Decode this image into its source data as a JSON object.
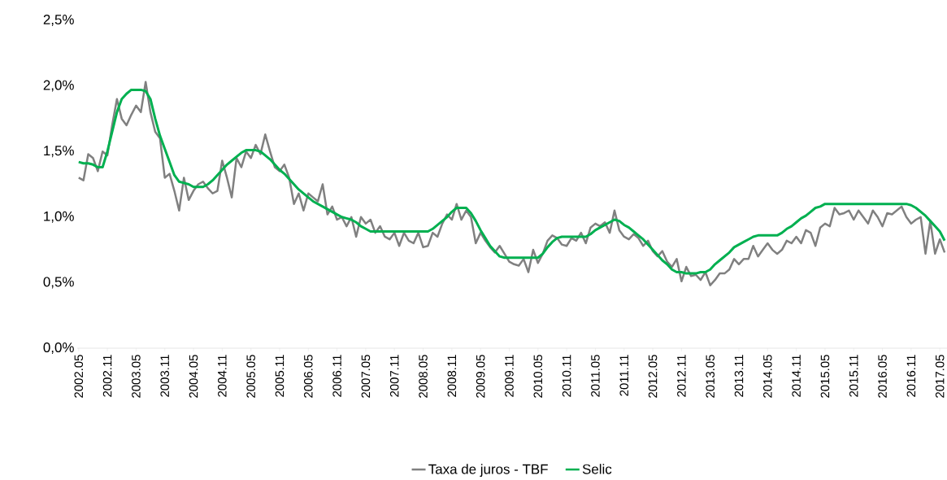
{
  "chart_data": {
    "type": "line",
    "legend": "bottom",
    "categories": [
      "2002.05",
      null,
      null,
      null,
      null,
      null,
      "2002.11",
      null,
      null,
      null,
      null,
      null,
      "2003.05",
      null,
      null,
      null,
      null,
      null,
      "2003.11",
      null,
      null,
      null,
      null,
      null,
      "2004.05",
      null,
      null,
      null,
      null,
      null,
      "2004.11",
      null,
      null,
      null,
      null,
      null,
      "2005.05",
      null,
      null,
      null,
      null,
      null,
      "2005.11",
      null,
      null,
      null,
      null,
      null,
      "2006.05",
      null,
      null,
      null,
      null,
      null,
      "2006.11",
      null,
      null,
      null,
      null,
      null,
      "2007.05",
      null,
      null,
      null,
      null,
      null,
      "2007.11",
      null,
      null,
      null,
      null,
      null,
      "2008.05",
      null,
      null,
      null,
      null,
      null,
      "2008.11",
      null,
      null,
      null,
      null,
      null,
      "2009.05",
      null,
      null,
      null,
      null,
      null,
      "2009.11",
      null,
      null,
      null,
      null,
      null,
      "2010.05",
      null,
      null,
      null,
      null,
      null,
      "2010.11",
      null,
      null,
      null,
      null,
      null,
      "2011.05",
      null,
      null,
      null,
      null,
      null,
      "2011.11",
      null,
      null,
      null,
      null,
      null,
      "2012.05",
      null,
      null,
      null,
      null,
      null,
      "2012.11",
      null,
      null,
      null,
      null,
      null,
      "2013.05",
      null,
      null,
      null,
      null,
      null,
      "2013.11",
      null,
      null,
      null,
      null,
      null,
      "2014.05",
      null,
      null,
      null,
      null,
      null,
      "2014.11",
      null,
      null,
      null,
      null,
      null,
      "2015.05",
      null,
      null,
      null,
      null,
      null,
      "2015.11",
      null,
      null,
      null,
      null,
      null,
      "2016.05",
      null,
      null,
      null,
      null,
      null,
      "2016.11",
      null,
      null,
      null,
      null,
      null,
      "2017.05",
      null
    ],
    "ylim": [
      0,
      2.5
    ],
    "yticks": [
      {
        "value": 0,
        "label": "0,0%"
      },
      {
        "value": 0.5,
        "label": "0,5%"
      },
      {
        "value": 1,
        "label": "1,0%"
      },
      {
        "value": 1.5,
        "label": "1,5%"
      },
      {
        "value": 2,
        "label": "2,0%"
      },
      {
        "value": 2.5,
        "label": "2,5%"
      }
    ],
    "series": [
      {
        "name": "Taxa de juros - TBF",
        "color": "#808080",
        "values": [
          1.3,
          1.28,
          1.48,
          1.45,
          1.35,
          1.5,
          1.47,
          1.7,
          1.9,
          1.75,
          1.7,
          1.78,
          1.85,
          1.8,
          2.03,
          1.8,
          1.65,
          1.6,
          1.3,
          1.33,
          1.2,
          1.05,
          1.3,
          1.13,
          1.2,
          1.25,
          1.27,
          1.22,
          1.18,
          1.2,
          1.43,
          1.3,
          1.15,
          1.45,
          1.38,
          1.5,
          1.45,
          1.55,
          1.48,
          1.63,
          1.5,
          1.38,
          1.35,
          1.4,
          1.3,
          1.1,
          1.18,
          1.05,
          1.18,
          1.15,
          1.12,
          1.25,
          1.02,
          1.08,
          0.98,
          1.0,
          0.93,
          1.0,
          0.85,
          1.0,
          0.95,
          0.98,
          0.88,
          0.93,
          0.85,
          0.83,
          0.88,
          0.78,
          0.88,
          0.82,
          0.8,
          0.88,
          0.77,
          0.78,
          0.88,
          0.85,
          0.95,
          1.02,
          0.98,
          1.1,
          0.98,
          1.05,
          1.0,
          0.8,
          0.88,
          0.82,
          0.77,
          0.73,
          0.78,
          0.72,
          0.66,
          0.64,
          0.63,
          0.68,
          0.58,
          0.75,
          0.65,
          0.72,
          0.82,
          0.86,
          0.84,
          0.79,
          0.78,
          0.84,
          0.82,
          0.88,
          0.8,
          0.92,
          0.95,
          0.93,
          0.96,
          0.88,
          1.05,
          0.9,
          0.85,
          0.83,
          0.87,
          0.84,
          0.78,
          0.82,
          0.74,
          0.7,
          0.74,
          0.66,
          0.62,
          0.68,
          0.51,
          0.62,
          0.55,
          0.56,
          0.52,
          0.58,
          0.48,
          0.52,
          0.57,
          0.57,
          0.6,
          0.68,
          0.64,
          0.68,
          0.68,
          0.78,
          0.7,
          0.75,
          0.8,
          0.75,
          0.72,
          0.75,
          0.82,
          0.8,
          0.85,
          0.8,
          0.9,
          0.88,
          0.78,
          0.92,
          0.95,
          0.93,
          1.07,
          1.02,
          1.03,
          1.05,
          0.98,
          1.05,
          1.0,
          0.95,
          1.05,
          1.0,
          0.93,
          1.03,
          1.02,
          1.05,
          1.08,
          1.0,
          0.95,
          0.98,
          1.0,
          0.72,
          0.97,
          0.72,
          0.83,
          0.73
        ]
      },
      {
        "name": "Selic",
        "color": "#00b050",
        "values": [
          1.42,
          1.41,
          1.41,
          1.4,
          1.38,
          1.38,
          1.5,
          1.65,
          1.8,
          1.9,
          1.94,
          1.97,
          1.97,
          1.97,
          1.96,
          1.9,
          1.75,
          1.62,
          1.52,
          1.42,
          1.32,
          1.27,
          1.26,
          1.25,
          1.23,
          1.23,
          1.23,
          1.25,
          1.28,
          1.32,
          1.36,
          1.4,
          1.43,
          1.46,
          1.49,
          1.51,
          1.51,
          1.51,
          1.5,
          1.47,
          1.44,
          1.4,
          1.36,
          1.33,
          1.29,
          1.25,
          1.21,
          1.18,
          1.15,
          1.12,
          1.1,
          1.08,
          1.06,
          1.04,
          1.02,
          1.0,
          0.99,
          0.98,
          0.96,
          0.93,
          0.91,
          0.89,
          0.89,
          0.89,
          0.89,
          0.89,
          0.89,
          0.89,
          0.89,
          0.89,
          0.89,
          0.89,
          0.89,
          0.89,
          0.91,
          0.94,
          0.97,
          1.0,
          1.04,
          1.07,
          1.07,
          1.07,
          1.03,
          0.97,
          0.9,
          0.84,
          0.78,
          0.74,
          0.7,
          0.69,
          0.69,
          0.69,
          0.69,
          0.69,
          0.69,
          0.69,
          0.69,
          0.72,
          0.77,
          0.81,
          0.84,
          0.85,
          0.85,
          0.85,
          0.85,
          0.85,
          0.85,
          0.87,
          0.9,
          0.92,
          0.94,
          0.96,
          0.98,
          0.97,
          0.94,
          0.92,
          0.89,
          0.86,
          0.83,
          0.79,
          0.75,
          0.71,
          0.67,
          0.64,
          0.6,
          0.58,
          0.58,
          0.57,
          0.57,
          0.57,
          0.58,
          0.58,
          0.6,
          0.64,
          0.67,
          0.7,
          0.73,
          0.77,
          0.79,
          0.81,
          0.83,
          0.85,
          0.86,
          0.86,
          0.86,
          0.86,
          0.86,
          0.88,
          0.91,
          0.93,
          0.96,
          0.99,
          1.01,
          1.04,
          1.07,
          1.08,
          1.1,
          1.1,
          1.1,
          1.1,
          1.1,
          1.1,
          1.1,
          1.1,
          1.1,
          1.1,
          1.1,
          1.1,
          1.1,
          1.1,
          1.1,
          1.1,
          1.1,
          1.1,
          1.09,
          1.07,
          1.04,
          1.01,
          0.97,
          0.93,
          0.89,
          0.82
        ]
      }
    ]
  }
}
